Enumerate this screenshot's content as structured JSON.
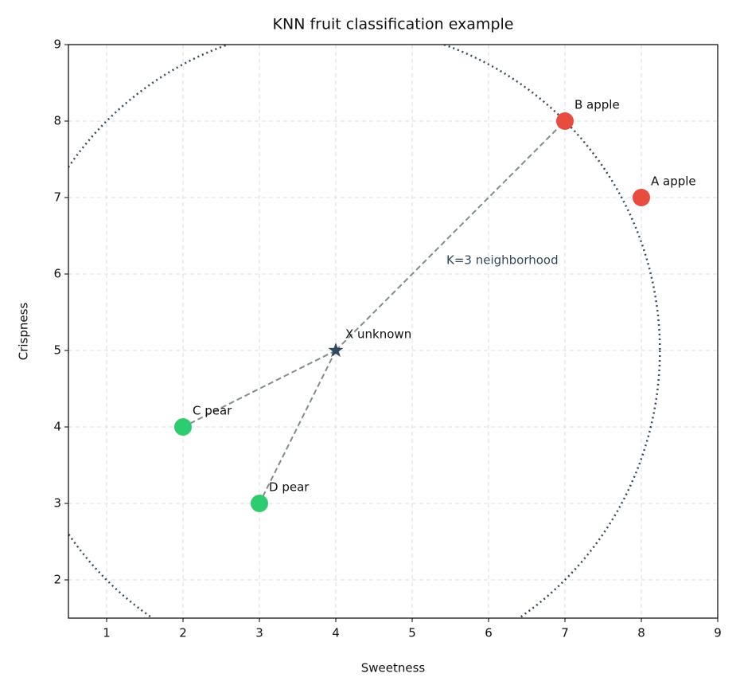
{
  "chart_data": {
    "type": "scatter",
    "title": "KNN fruit classification example",
    "x_label": "Sweetness",
    "y_label": "Crispness",
    "xlim": [
      0.5,
      9
    ],
    "ylim": [
      1.5,
      9
    ],
    "xticks": [
      1,
      2,
      3,
      4,
      5,
      6,
      7,
      8,
      9
    ],
    "yticks": [
      2,
      3,
      4,
      5,
      6,
      7,
      8,
      9
    ],
    "grid": true,
    "points": [
      {
        "label": "A apple",
        "x": 8,
        "y": 7,
        "color": "#e74c3c",
        "marker": "circle"
      },
      {
        "label": "B apple",
        "x": 7,
        "y": 8,
        "color": "#e74c3c",
        "marker": "circle"
      },
      {
        "label": "C pear",
        "x": 2,
        "y": 4,
        "color": "#2ecc71",
        "marker": "circle"
      },
      {
        "label": "D pear",
        "x": 3,
        "y": 3,
        "color": "#2ecc71",
        "marker": "circle"
      },
      {
        "label": "X unknown",
        "x": 4,
        "y": 5,
        "color": "#34495e",
        "marker": "star"
      }
    ],
    "neighbor_lines": [
      {
        "x": [
          4,
          7
        ],
        "y": [
          5,
          8
        ]
      },
      {
        "x": [
          4,
          2
        ],
        "y": [
          5,
          4
        ]
      },
      {
        "x": [
          4,
          3
        ],
        "y": [
          5,
          3
        ]
      }
    ],
    "line_color": "#7f8c8d",
    "neighborhood": {
      "label": "K=3 neighborhood",
      "center_x": 4,
      "center_y": 5,
      "radius": 4.243,
      "color": "#34495e"
    }
  }
}
